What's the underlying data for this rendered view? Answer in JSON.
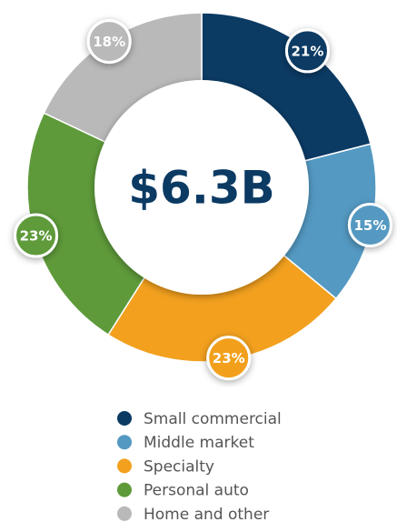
{
  "chart_data": {
    "type": "donut",
    "center_label": "$6.3B",
    "categories": [
      "Small commercial",
      "Middle market",
      "Specialty",
      "Personal auto",
      "Home and other"
    ],
    "values": [
      21,
      15,
      23,
      23,
      18
    ],
    "value_labels": [
      "21%",
      "15%",
      "23%",
      "23%",
      "18%"
    ],
    "colors": [
      "#0b3a63",
      "#5499c2",
      "#f2a01e",
      "#5e9a3a",
      "#b9b9b9"
    ]
  }
}
